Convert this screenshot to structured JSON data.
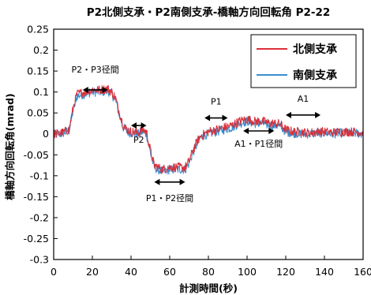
{
  "chart_data": {
    "type": "line",
    "title": "P2北側支承・P2南側支承-橋軸方向回転角 P2-22",
    "xlabel": "計測時間(秒)",
    "ylabel": "橋軸方向回転角(mrad)",
    "xlim": [
      0,
      160
    ],
    "ylim": [
      -0.3,
      0.25
    ],
    "xticks": [
      0,
      20,
      40,
      60,
      80,
      100,
      120,
      140,
      160
    ],
    "yticks": [
      "0.25",
      "0.2",
      "0.15",
      "0.1",
      "0.05",
      "0",
      "-0.05",
      "-0.1",
      "-0.15",
      "-0.2",
      "-0.25",
      "-0.3"
    ],
    "grid": false,
    "legend_position": "top-right",
    "series": [
      {
        "name": "北側支承",
        "color": "#d9303a",
        "x": [
          0,
          4,
          8,
          10,
          12,
          16,
          20,
          24,
          28,
          30,
          32,
          34,
          36,
          38,
          40,
          44,
          46,
          48,
          50,
          52,
          56,
          60,
          64,
          68,
          70,
          72,
          74,
          76,
          78,
          80,
          84,
          88,
          92,
          96,
          100,
          104,
          108,
          112,
          116,
          118,
          120,
          124,
          128,
          132,
          136,
          140,
          144,
          148,
          152,
          156,
          160
        ],
        "y": [
          0.0,
          0.002,
          0.01,
          0.06,
          0.095,
          0.1,
          0.105,
          0.105,
          0.108,
          0.1,
          0.085,
          0.05,
          0.02,
          0.01,
          0.005,
          0.003,
          0.01,
          0.005,
          -0.04,
          -0.075,
          -0.085,
          -0.08,
          -0.08,
          -0.08,
          -0.065,
          -0.04,
          -0.02,
          -0.005,
          0.0,
          0.005,
          0.01,
          0.015,
          0.02,
          0.03,
          0.035,
          0.03,
          0.03,
          0.025,
          0.025,
          0.02,
          0.01,
          0.005,
          0.005,
          0.002,
          0.005,
          0.005,
          0.003,
          0.005,
          0.005,
          0.005,
          0.003
        ]
      },
      {
        "name": "南側支承",
        "color": "#3a8fd0",
        "x": [
          0,
          4,
          8,
          10,
          12,
          16,
          20,
          24,
          28,
          30,
          32,
          34,
          36,
          38,
          40,
          44,
          46,
          48,
          50,
          52,
          56,
          60,
          64,
          68,
          70,
          72,
          74,
          76,
          78,
          80,
          84,
          88,
          92,
          96,
          100,
          104,
          108,
          112,
          116,
          118,
          120,
          124,
          128,
          132,
          136,
          140,
          144,
          148,
          152,
          156,
          160
        ],
        "y": [
          -0.002,
          0.0,
          0.008,
          0.055,
          0.09,
          0.095,
          0.1,
          0.1,
          0.102,
          0.095,
          0.08,
          0.045,
          0.015,
          0.005,
          0.002,
          0.0,
          0.005,
          0.0,
          -0.045,
          -0.08,
          -0.09,
          -0.085,
          -0.085,
          -0.085,
          -0.07,
          -0.045,
          -0.025,
          -0.008,
          -0.003,
          0.0,
          0.005,
          0.01,
          0.015,
          0.025,
          0.03,
          0.025,
          0.025,
          0.02,
          0.02,
          0.015,
          0.005,
          0.002,
          0.0,
          0.0,
          0.002,
          0.002,
          0.0,
          0.002,
          0.002,
          0.002,
          0.0
        ]
      }
    ],
    "annotations": [
      {
        "text": "P2・P3径間",
        "x_start": 15,
        "x_end": 28,
        "arrow_y": 0.105
      },
      {
        "text": "P2",
        "x_start": 40,
        "x_end": 48,
        "arrow_y": 0.02
      },
      {
        "text": "P1・P2径間",
        "x_start": 52,
        "x_end": 68,
        "arrow_y": -0.115
      },
      {
        "text": "P1",
        "x_start": 78,
        "x_end": 90,
        "arrow_y": 0.038
      },
      {
        "text": "A1・P1径間",
        "x_start": 98,
        "x_end": 114,
        "arrow_y": 0.007
      },
      {
        "text": "A1",
        "x_start": 120,
        "x_end": 138,
        "arrow_y": 0.045
      }
    ]
  }
}
